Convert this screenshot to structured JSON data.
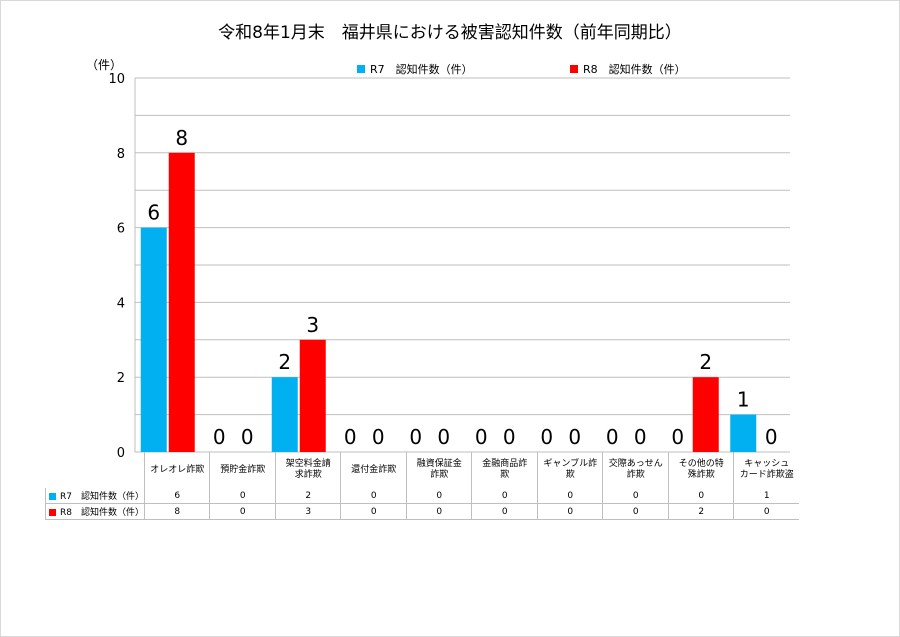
{
  "colors": {
    "r7": "#00b0f0",
    "r8": "#ff0000",
    "grid": "#bfbfbf"
  },
  "chart_data": {
    "type": "bar",
    "title": "令和8年1月末　福井県における被害認知件数（前年同期比）",
    "ylabel": "（件）",
    "ylim": [
      0,
      10
    ],
    "yticks": [
      "0",
      "2",
      "4",
      "6",
      "8",
      "10"
    ],
    "categories": [
      "オレオレ詐欺",
      "預貯金詐欺",
      "架空料金請求詐欺",
      "還付金詐欺",
      "融資保証金詐欺",
      "金融商品詐欺",
      "ギャンブル詐欺",
      "交際あっせん詐欺",
      "その他の特殊詐欺",
      "キャッシュカード詐欺盗"
    ],
    "category_lines": [
      [
        "オレオレ詐欺"
      ],
      [
        "預貯金詐欺"
      ],
      [
        "架空料金請",
        "求詐欺"
      ],
      [
        "還付金詐欺"
      ],
      [
        "融資保証金",
        "詐欺"
      ],
      [
        "金融商品詐",
        "欺"
      ],
      [
        "ギャンブル詐",
        "欺"
      ],
      [
        "交際あっせん",
        "詐欺"
      ],
      [
        "その他の特",
        "殊詐欺"
      ],
      [
        "キャッシュ",
        "カード詐欺盗"
      ]
    ],
    "series": [
      {
        "name": "R7　認知件数（件）",
        "values": [
          6,
          0,
          2,
          0,
          0,
          0,
          0,
          0,
          0,
          1
        ]
      },
      {
        "name": "R8　認知件数（件）",
        "values": [
          8,
          0,
          3,
          0,
          0,
          0,
          0,
          0,
          2,
          0
        ]
      }
    ],
    "legend": "top",
    "grid": true
  }
}
